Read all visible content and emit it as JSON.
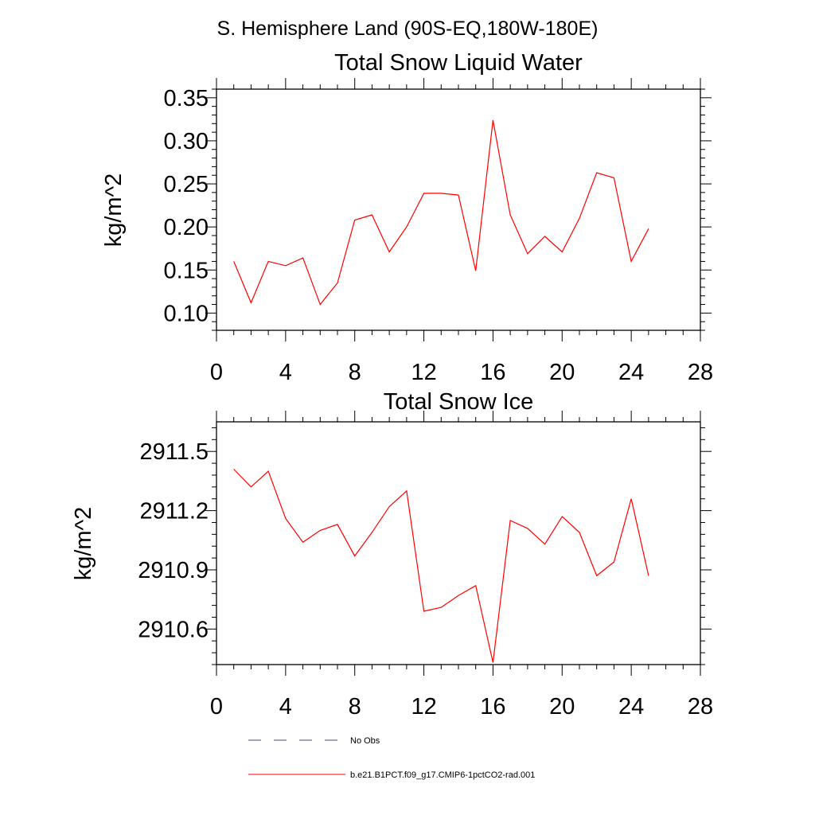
{
  "page_title": "S. Hemisphere Land (90S-EQ,180W-180E)",
  "chart_data": [
    {
      "type": "line",
      "title": "Total Snow Liquid Water",
      "xlabel": "",
      "ylabel": "kg/m^2",
      "xlim": [
        0,
        28
      ],
      "ylim": [
        0.08,
        0.36
      ],
      "x_ticks": [
        "0",
        "4",
        "8",
        "12",
        "16",
        "20",
        "24",
        "28"
      ],
      "y_ticks": [
        "0.10",
        "0.15",
        "0.20",
        "0.25",
        "0.30",
        "0.35"
      ],
      "grid": false,
      "series": [
        {
          "name": "b.e21.B1PCT.f09_g17.CMIP6-1pctCO2-rad.001",
          "color": "#ff0000",
          "x": [
            1,
            2,
            3,
            4,
            5,
            6,
            7,
            8,
            9,
            10,
            11,
            12,
            13,
            14,
            15,
            16,
            17,
            18,
            19,
            20,
            21,
            22,
            23,
            24,
            25
          ],
          "values": [
            0.16,
            0.112,
            0.16,
            0.155,
            0.164,
            0.11,
            0.135,
            0.208,
            0.214,
            0.171,
            0.2,
            0.239,
            0.239,
            0.237,
            0.149,
            0.324,
            0.214,
            0.169,
            0.189,
            0.171,
            0.21,
            0.263,
            0.257,
            0.16,
            0.198
          ]
        }
      ]
    },
    {
      "type": "line",
      "title": "Total Snow Ice",
      "xlabel": "",
      "ylabel": "kg/m^2",
      "xlim": [
        0,
        28
      ],
      "ylim": [
        2910.42,
        2911.65
      ],
      "x_ticks": [
        "0",
        "4",
        "8",
        "12",
        "16",
        "20",
        "24",
        "28"
      ],
      "y_ticks": [
        "2910.6",
        "2910.9",
        "2911.2",
        "2911.5"
      ],
      "grid": false,
      "series": [
        {
          "name": "b.e21.B1PCT.f09_g17.CMIP6-1pctCO2-rad.001",
          "color": "#ff0000",
          "x": [
            1,
            2,
            3,
            4,
            5,
            6,
            7,
            8,
            9,
            10,
            11,
            12,
            13,
            14,
            15,
            16,
            17,
            18,
            19,
            20,
            21,
            22,
            23,
            24,
            25
          ],
          "values": [
            2911.41,
            2911.32,
            2911.4,
            2911.16,
            2911.04,
            2911.1,
            2911.13,
            2910.97,
            2911.09,
            2911.22,
            2911.3,
            2910.69,
            2910.71,
            2910.77,
            2910.82,
            2910.43,
            2911.15,
            2911.11,
            2911.03,
            2911.17,
            2911.09,
            2910.87,
            2910.94,
            2911.26,
            2910.87
          ]
        }
      ]
    }
  ],
  "legend": [
    {
      "label": "No Obs",
      "color": "#3a4a8a",
      "style": "dashed"
    },
    {
      "label": "b.e21.B1PCT.f09_g17.CMIP6-1pctCO2-rad.001",
      "color": "#ff0000",
      "style": "solid"
    }
  ]
}
